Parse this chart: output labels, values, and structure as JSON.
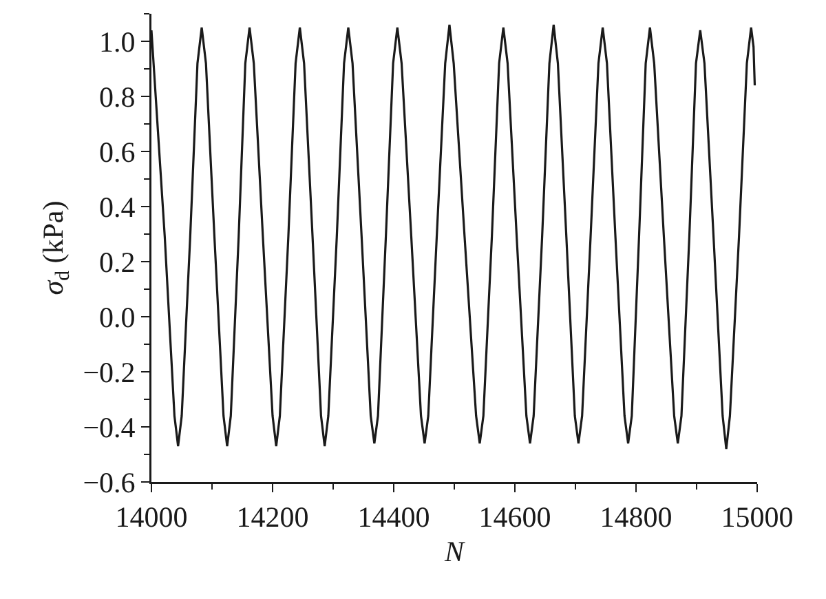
{
  "chart_data": {
    "type": "line",
    "xlabel": "N",
    "ylabel": "σ$_{d}$ (kPa)",
    "xlim": [
      14000,
      15000
    ],
    "xticks": [
      14000,
      14200,
      14400,
      14600,
      14800,
      15000
    ],
    "ylim": [
      -0.6,
      1.1
    ],
    "yticks": [
      {
        "value": -0.6,
        "label": "−0.6"
      },
      {
        "value": -0.4,
        "label": "−0.4"
      },
      {
        "value": -0.2,
        "label": "−0.2"
      },
      {
        "value": 0,
        "label": "0.0"
      },
      {
        "value": 0.2,
        "label": "0.2"
      },
      {
        "value": 0.4,
        "label": "0.4"
      },
      {
        "value": 0.6,
        "label": "0.6"
      },
      {
        "value": 0.8,
        "label": "0.8"
      },
      {
        "value": 1,
        "label": "1.0"
      }
    ],
    "grid": false,
    "legend": false,
    "marker": "none",
    "line_style": "solid",
    "x": [
      14000,
      14022,
      14038,
      14044,
      14050,
      14064,
      14076,
      14083,
      14090,
      14104,
      14119,
      14125,
      14131,
      14144,
      14155,
      14162,
      14169,
      14184,
      14200,
      14206,
      14212,
      14226,
      14238,
      14245,
      14252,
      14266,
      14280,
      14286,
      14292,
      14306,
      14318,
      14325,
      14332,
      14347,
      14362,
      14368,
      14374,
      14387,
      14399,
      14406,
      14413,
      14429,
      14445,
      14451,
      14457,
      14471,
      14485,
      14492,
      14499,
      14517,
      14536,
      14542,
      14548,
      14562,
      14574,
      14581,
      14588,
      14603,
      14619,
      14625,
      14631,
      14645,
      14657,
      14664,
      14671,
      14685,
      14699,
      14705,
      14711,
      14725,
      14738,
      14745,
      14752,
      14766,
      14781,
      14787,
      14793,
      14805,
      14816,
      14823,
      14830,
      14846,
      14863,
      14869,
      14875,
      14888,
      14899,
      14906,
      14913,
      14928,
      14943,
      14949,
      14955,
      14970,
      14983,
      14990,
      14994,
      14996
    ],
    "series": [
      {
        "color": "#1a1a1a",
        "values": [
          1.04,
          0.29,
          -0.36,
          -0.47,
          -0.36,
          0.29,
          0.92,
          1.05,
          0.92,
          0.29,
          -0.36,
          -0.47,
          -0.36,
          0.29,
          0.92,
          1.05,
          0.92,
          0.29,
          -0.36,
          -0.47,
          -0.36,
          0.29,
          0.92,
          1.05,
          0.92,
          0.29,
          -0.36,
          -0.47,
          -0.36,
          0.29,
          0.92,
          1.05,
          0.92,
          0.29,
          -0.36,
          -0.46,
          -0.36,
          0.29,
          0.92,
          1.05,
          0.92,
          0.29,
          -0.36,
          -0.46,
          -0.36,
          0.29,
          0.92,
          1.06,
          0.92,
          0.29,
          -0.36,
          -0.46,
          -0.36,
          0.29,
          0.92,
          1.05,
          0.92,
          0.29,
          -0.36,
          -0.46,
          -0.36,
          0.29,
          0.92,
          1.06,
          0.92,
          0.29,
          -0.36,
          -0.46,
          -0.36,
          0.29,
          0.92,
          1.05,
          0.92,
          0.29,
          -0.36,
          -0.46,
          -0.36,
          0.29,
          0.92,
          1.05,
          0.92,
          0.29,
          -0.36,
          -0.46,
          -0.36,
          0.29,
          0.92,
          1.04,
          0.92,
          0.29,
          -0.36,
          -0.48,
          -0.36,
          0.29,
          0.92,
          1.05,
          0.98,
          0.84
        ]
      }
    ]
  }
}
